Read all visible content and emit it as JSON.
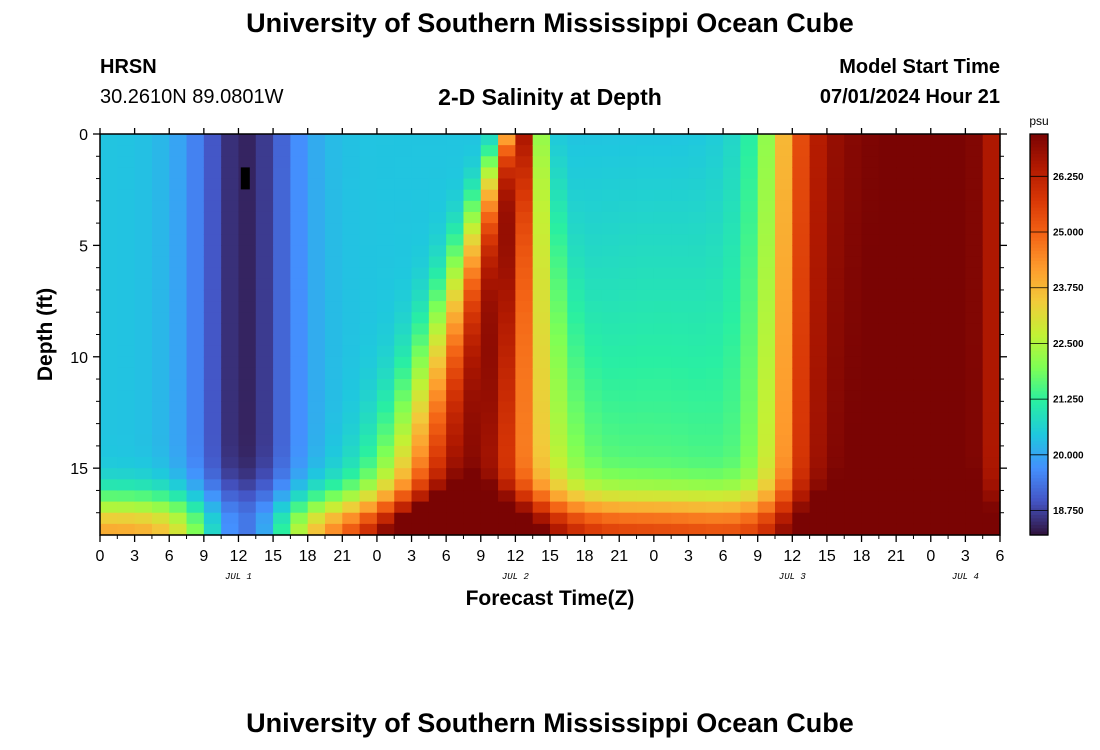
{
  "header": {
    "title": "University of Southern Mississippi Ocean Cube",
    "station": "HRSN",
    "coordinates": "30.2610N  89.0801W",
    "subtitle": "2-D Salinity at Depth",
    "model_start_label": "Model Start Time",
    "model_start_value": "07/01/2024 Hour 21"
  },
  "footer": {
    "title": "University of Southern Mississippi Ocean Cube"
  },
  "colors": {
    "colormap": [
      "#30123b",
      "#4454c4",
      "#4490fe",
      "#1fc8de",
      "#29efa2",
      "#7eff55",
      "#c3f134",
      "#f2ca3a",
      "#fe9b2d",
      "#f36315",
      "#d93806",
      "#b11901",
      "#7a0403"
    ]
  },
  "chart_data": {
    "type": "heatmap",
    "title": "2-D Salinity at Depth",
    "xlabel": "Forecast Time(Z)",
    "ylabel": "Depth (ft)",
    "x_tick_labels": [
      "0",
      "3",
      "6",
      "9",
      "12",
      "15",
      "18",
      "21",
      "0",
      "3",
      "6",
      "9",
      "12",
      "15",
      "18",
      "21",
      "0",
      "3",
      "6",
      "9",
      "12",
      "15",
      "18",
      "21",
      "0",
      "3",
      "6"
    ],
    "x_hours": [
      0,
      3,
      6,
      9,
      12,
      15,
      18,
      21,
      24,
      27,
      30,
      33,
      36,
      39,
      42,
      45,
      48,
      51,
      54,
      57,
      60,
      63,
      66,
      69,
      72,
      75,
      78
    ],
    "day_labels": [
      {
        "label": "JUL 1",
        "hour": 12
      },
      {
        "label": "JUL 2",
        "hour": 36
      },
      {
        "label": "JUL 3",
        "hour": 60
      },
      {
        "label": "JUL 4",
        "hour": 75
      }
    ],
    "xlim": [
      0,
      78
    ],
    "y_tick_labels": [
      "0",
      "5",
      "10",
      "15"
    ],
    "y_ticks": [
      0,
      5,
      10,
      15
    ],
    "ylim": [
      0,
      18
    ],
    "y_inverted": true,
    "colorbar": {
      "unit": "psu",
      "range": [
        18.2,
        27.2
      ],
      "tick_labels": [
        "26.250",
        "25.000",
        "23.750",
        "22.500",
        "21.250",
        "20.000",
        "18.750"
      ],
      "ticks": [
        26.25,
        25.0,
        23.75,
        22.5,
        21.25,
        20.0,
        18.75
      ]
    },
    "grid": false,
    "legend": "right"
  }
}
